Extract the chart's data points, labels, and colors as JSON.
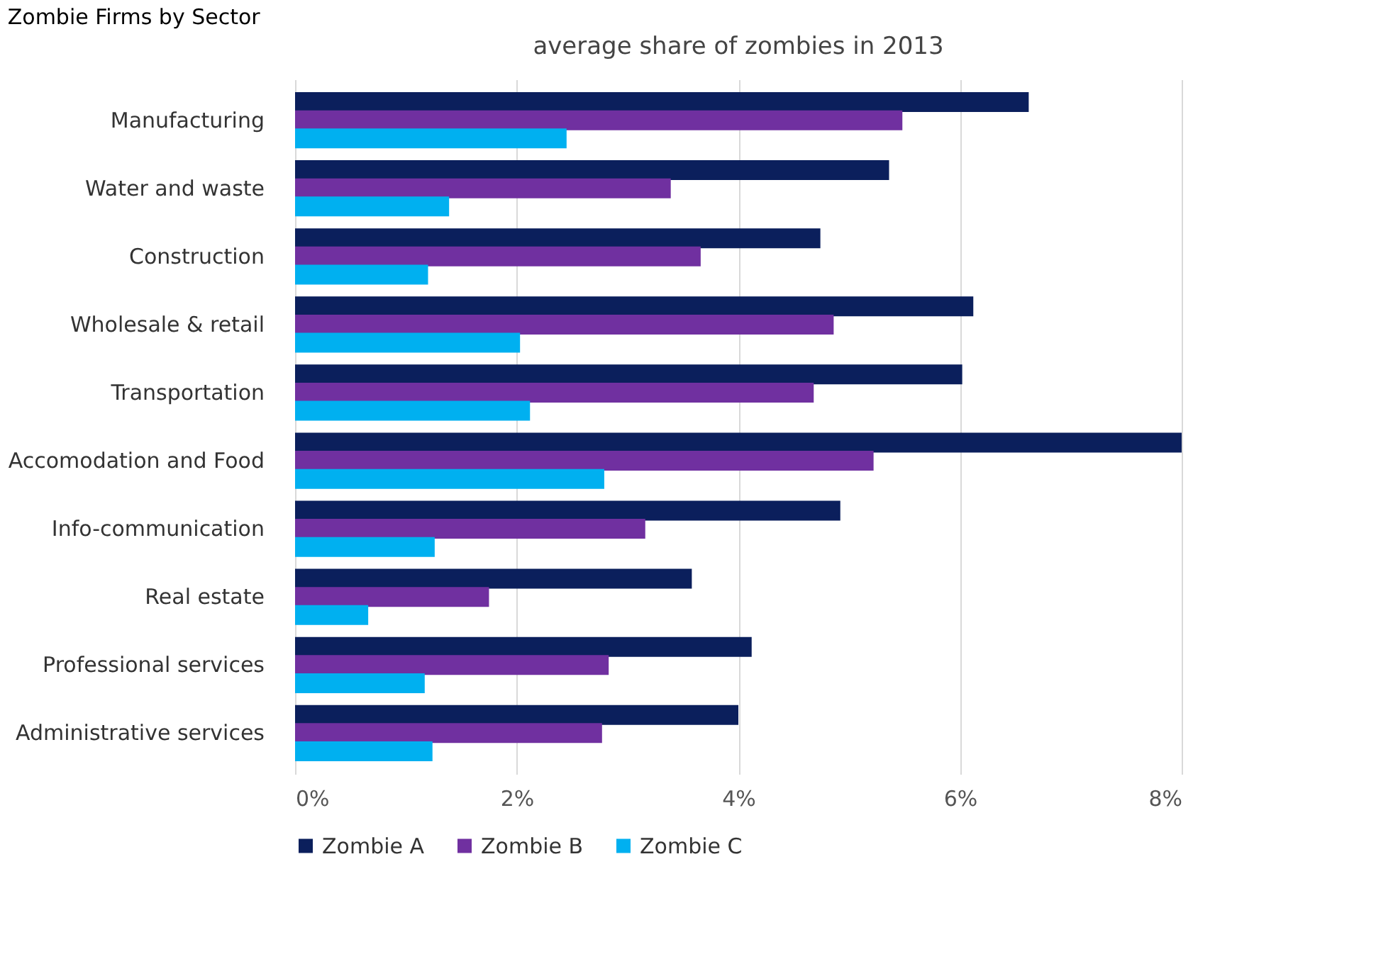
{
  "chart_data": {
    "type": "bar",
    "orientation": "horizontal",
    "title": "Zombie Firms by Sector",
    "subtitle": "average share of zombies in 2013",
    "categories": [
      "Manufacturing",
      "Water and waste",
      "Construction",
      "Wholesale & retail",
      "Transportation",
      "Accomodation and Food",
      "Info-communication",
      "Real estate",
      "Professional services",
      "Administrative services"
    ],
    "series": [
      {
        "name": "Zombie A",
        "color": "#0b1f5c",
        "values": [
          6.62,
          5.36,
          4.74,
          6.12,
          6.02,
          8.0,
          4.92,
          3.58,
          4.12,
          4.0
        ]
      },
      {
        "name": "Zombie B",
        "color": "#7030a0",
        "values": [
          5.48,
          3.39,
          3.66,
          4.86,
          4.68,
          5.22,
          3.16,
          1.75,
          2.83,
          2.77
        ]
      },
      {
        "name": "Zombie C",
        "color": "#00b0f0",
        "values": [
          2.45,
          1.39,
          1.2,
          2.03,
          2.12,
          2.79,
          1.26,
          0.66,
          1.17,
          1.24
        ]
      }
    ],
    "xlim": [
      0,
      8
    ],
    "xticks": [
      {
        "value": 0,
        "label": "0%"
      },
      {
        "value": 2,
        "label": "2%"
      },
      {
        "value": 4,
        "label": "4%"
      },
      {
        "value": 6,
        "label": "6%"
      },
      {
        "value": 8,
        "label": "8%"
      }
    ],
    "grid": "x",
    "legend": "bottom"
  }
}
